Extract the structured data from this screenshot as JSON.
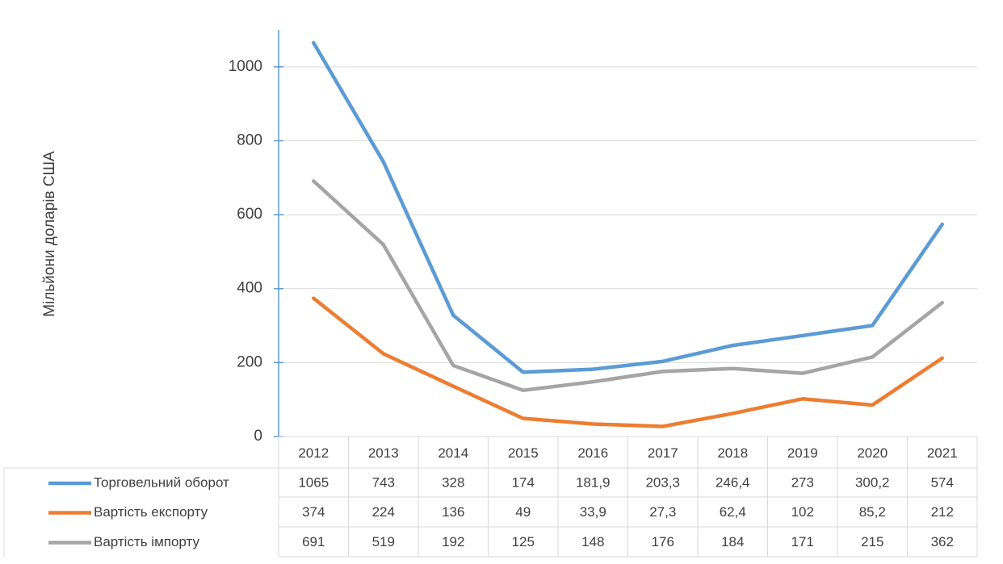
{
  "chart_data": {
    "type": "line",
    "y_label": "Мільйони доларів США",
    "categories": [
      "2012",
      "2013",
      "2014",
      "2015",
      "2016",
      "2017",
      "2018",
      "2019",
      "2020",
      "2021"
    ],
    "series": [
      {
        "name": "Торговельний оборот",
        "color": "#5b9bd5",
        "values": [
          1065,
          743,
          328,
          174,
          181.9,
          203.3,
          246.4,
          273,
          300.2,
          574
        ],
        "value_labels": [
          "1065",
          "743",
          "328",
          "174",
          "181,9",
          "203,3",
          "246,4",
          "273",
          "300,2",
          "574"
        ]
      },
      {
        "name": "Вартість експорту",
        "color": "#ed7d31",
        "values": [
          374,
          224,
          136,
          49,
          33.9,
          27.3,
          62.4,
          102,
          85.2,
          212
        ],
        "value_labels": [
          "374",
          "224",
          "136",
          "49",
          "33,9",
          "27,3",
          "62,4",
          "102",
          "85,2",
          "212"
        ]
      },
      {
        "name": "Вартість імпорту",
        "color": "#a5a5a5",
        "values": [
          691,
          519,
          192,
          125,
          148,
          176,
          184,
          171,
          215,
          362
        ],
        "value_labels": [
          "691",
          "519",
          "192",
          "125",
          "148",
          "176",
          "184",
          "171",
          "215",
          "362"
        ]
      }
    ],
    "ylim": [
      0,
      1100
    ],
    "yticks": [
      0,
      200,
      400,
      600,
      800,
      1000
    ],
    "grid": true
  }
}
